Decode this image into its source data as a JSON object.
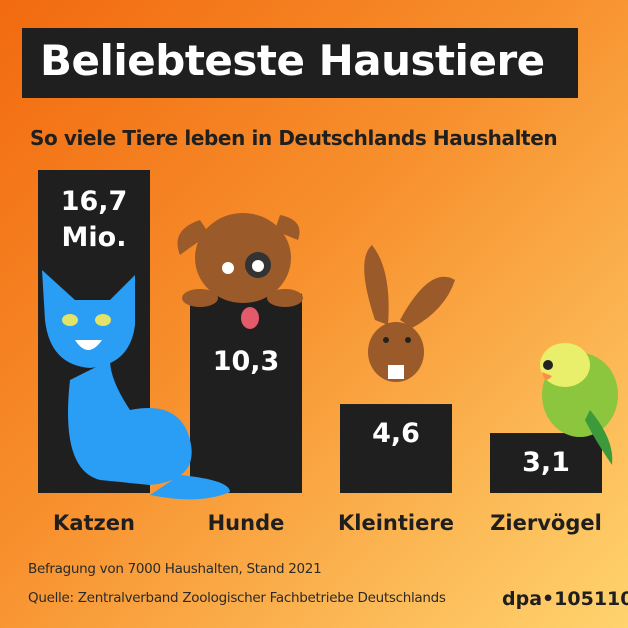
{
  "chart_data": {
    "type": "bar",
    "title": "Beliebteste Haustiere",
    "subtitle": "So viele Tiere leben in Deutschlands Haushalten",
    "categories": [
      "Katzen",
      "Hunde",
      "Kleintiere",
      "Ziervögel"
    ],
    "values": [
      16.7,
      10.3,
      4.6,
      3.1
    ],
    "data_labels": [
      "16,7\nMio.",
      "10,3",
      "4,6",
      "3,1"
    ],
    "unit": "Mio.",
    "bar_color": "#1f1f1f",
    "grid": false,
    "legend": "none",
    "icons": [
      "cat-illustration",
      "dog-illustration",
      "rabbit-illustration",
      "budgie-illustration"
    ]
  },
  "footer": {
    "note": "Befragung von 7000 Haushalten, Stand 2021",
    "source": "Quelle: Zentralverband Zoologischer Fachbetriebe Deutschlands",
    "logo": "dpa•105110"
  }
}
